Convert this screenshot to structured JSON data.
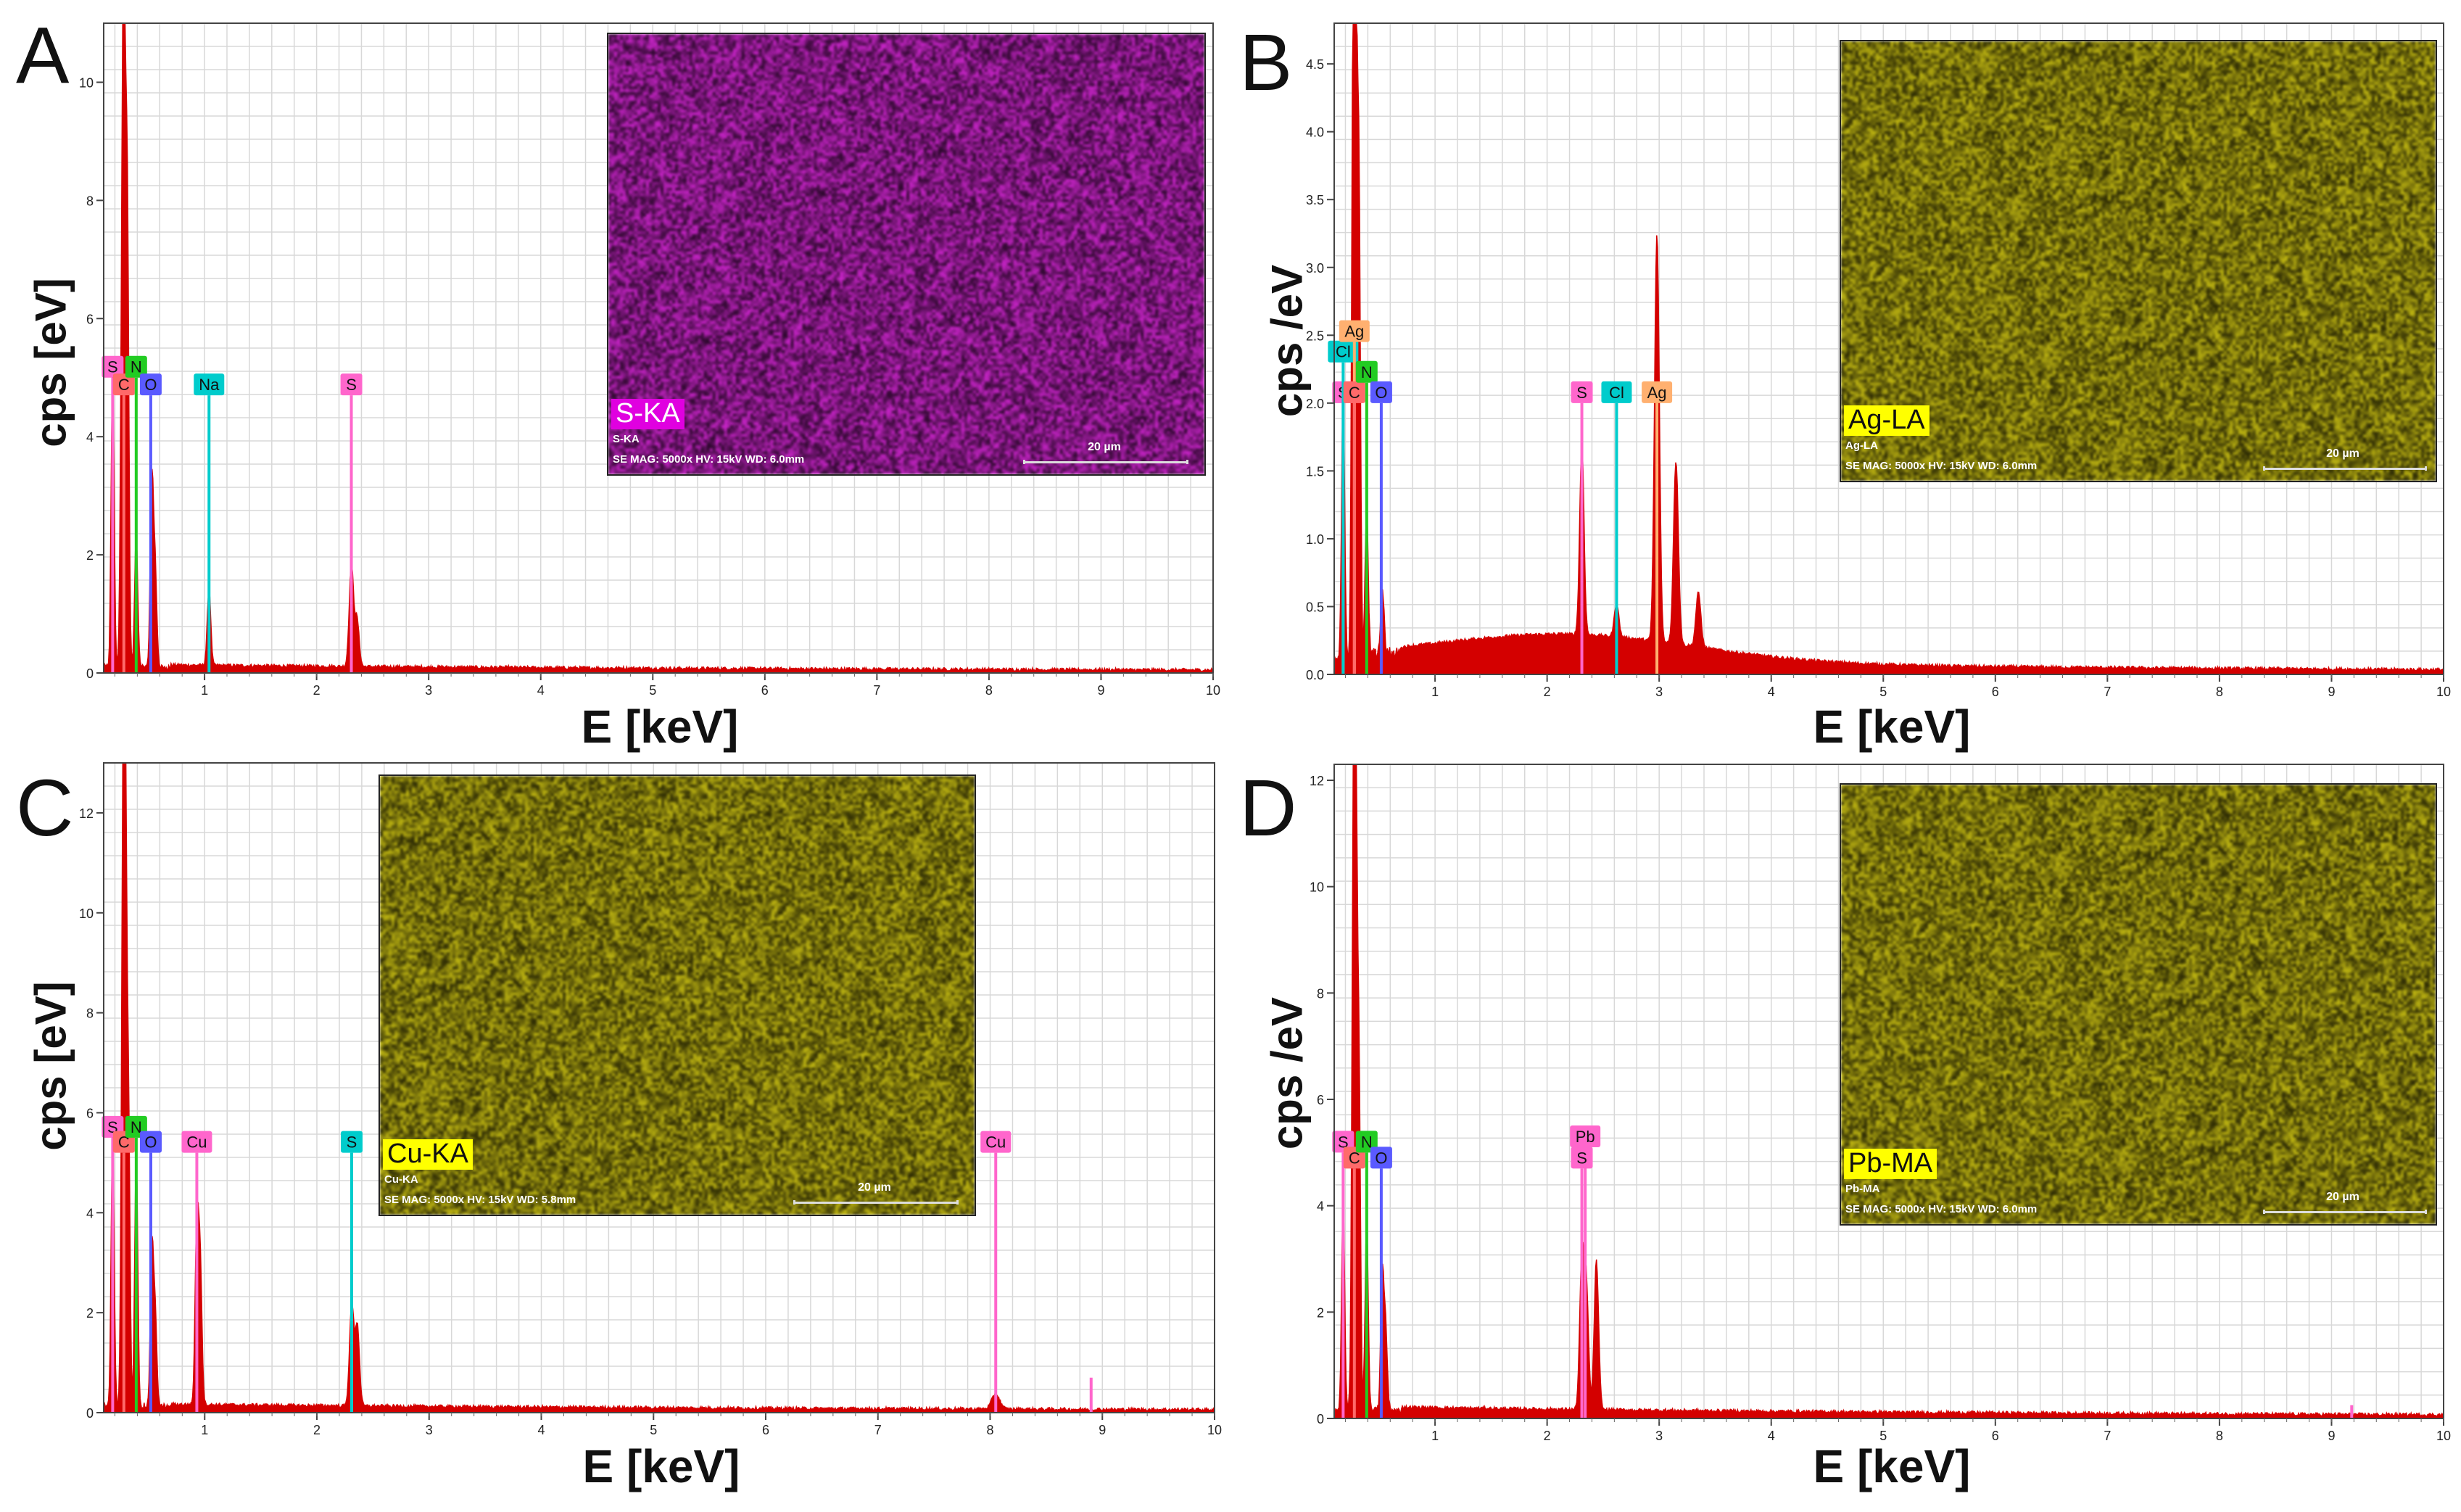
{
  "figure": {
    "background": "#ffffff",
    "spectrum_color": "#d40000",
    "grid_color": "#d8d8d8"
  },
  "chart_data": [
    {
      "type": "line",
      "panel": "A",
      "title": "",
      "xlabel": "E [keV]",
      "ylabel": "cps [eV]",
      "xlim": [
        0.1,
        10
      ],
      "ylim": [
        0,
        11
      ],
      "x_ticks": [
        1,
        2,
        3,
        4,
        5,
        6,
        7,
        8,
        9,
        10
      ],
      "y_ticks": [
        0,
        2,
        4,
        6,
        8,
        10
      ],
      "y_tick_labels": [
        "0",
        "2",
        "4",
        "6",
        "8",
        "10"
      ],
      "series": [
        {
          "name": "spectrum",
          "peaks": [
            {
              "e": 0.18,
              "h": 5.0
            },
            {
              "e": 0.26,
              "h": 3.8
            },
            {
              "e": 0.28,
              "h": 11.0
            },
            {
              "e": 0.31,
              "h": 8.0
            },
            {
              "e": 0.39,
              "h": 2.2
            },
            {
              "e": 0.53,
              "h": 3.2
            },
            {
              "e": 0.56,
              "h": 1.6
            },
            {
              "e": 1.04,
              "h": 1.3
            },
            {
              "e": 2.31,
              "h": 1.7
            },
            {
              "e": 2.36,
              "h": 0.8
            }
          ],
          "background": 0.12
        }
      ],
      "element_lines": [
        {
          "label": "S",
          "energy": 0.18,
          "height": 5.0,
          "color": "#ff66cc"
        },
        {
          "label": "C",
          "energy": 0.28,
          "height": 4.7,
          "color": "#ff6a6a"
        },
        {
          "label": "N",
          "energy": 0.39,
          "height": 5.0,
          "color": "#22cc22"
        },
        {
          "label": "O",
          "energy": 0.52,
          "height": 4.7,
          "color": "#5a5aff"
        },
        {
          "label": "Na",
          "energy": 1.04,
          "height": 4.7,
          "color": "#00cccc"
        },
        {
          "label": "S",
          "energy": 2.31,
          "height": 4.7,
          "color": "#ff66cc"
        }
      ],
      "inset": {
        "label": "S-KA",
        "sublabel": "S-KA",
        "meta": "SE  MAG: 5000x  HV: 15kV  WD: 6.0mm",
        "scale": "20 µm",
        "tone": "#b020b0",
        "label_bg": "#e000e0",
        "label_fg": "#ffffff"
      }
    },
    {
      "type": "line",
      "panel": "B",
      "title": "",
      "xlabel": "E [keV]",
      "ylabel": "cps /eV",
      "xlim": [
        0.1,
        10
      ],
      "ylim": [
        0,
        4.8
      ],
      "x_ticks": [
        1,
        2,
        3,
        4,
        5,
        6,
        7,
        8,
        9,
        10
      ],
      "y_ticks": [
        0,
        0.5,
        1.0,
        1.5,
        2.0,
        2.5,
        3.0,
        3.5,
        4.0,
        4.5
      ],
      "y_tick_labels": [
        "0.0",
        "0.5",
        "1.0",
        "1.5",
        "2.0",
        "2.5",
        "3.0",
        "3.5",
        "4.0",
        "4.5"
      ],
      "series": [
        {
          "name": "spectrum",
          "peaks": [
            {
              "e": 0.18,
              "h": 2.0
            },
            {
              "e": 0.27,
              "h": 4.3
            },
            {
              "e": 0.29,
              "h": 4.7
            },
            {
              "e": 0.32,
              "h": 3.5
            },
            {
              "e": 0.39,
              "h": 1.1
            },
            {
              "e": 0.53,
              "h": 0.5
            },
            {
              "e": 2.31,
              "h": 1.4
            },
            {
              "e": 2.62,
              "h": 0.25
            },
            {
              "e": 2.98,
              "h": 3.0
            },
            {
              "e": 3.15,
              "h": 1.35
            },
            {
              "e": 3.35,
              "h": 0.4
            }
          ],
          "background": 0.12
        },
        {
          "name": "bremsstrahlung_hump",
          "center": 2.2,
          "height": 0.2,
          "width": 1.6
        }
      ],
      "element_lines": [
        {
          "label": "S",
          "energy": 0.18,
          "height": 2.0,
          "color": "#ff66cc"
        },
        {
          "label": "Cl",
          "energy": 0.18,
          "height": 2.3,
          "color": "#00cccc"
        },
        {
          "label": "Ag",
          "energy": 0.28,
          "height": 2.45,
          "color": "#ffb070"
        },
        {
          "label": "C",
          "energy": 0.28,
          "height": 2.0,
          "color": "#ff6a6a"
        },
        {
          "label": "N",
          "energy": 0.39,
          "height": 2.15,
          "color": "#22cc22"
        },
        {
          "label": "O",
          "energy": 0.52,
          "height": 2.0,
          "color": "#5a5aff"
        },
        {
          "label": "S",
          "energy": 2.31,
          "height": 2.0,
          "color": "#ff66cc"
        },
        {
          "label": "Cl",
          "energy": 2.62,
          "height": 2.0,
          "color": "#00cccc"
        },
        {
          "label": "Ag",
          "energy": 2.98,
          "height": 2.0,
          "color": "#ffb070"
        }
      ],
      "inset": {
        "label": "Ag-LA",
        "sublabel": "Ag-LA",
        "meta": "SE  MAG: 5000x  HV: 15kV  WD: 6.0mm",
        "scale": "20 µm",
        "tone": "#a8a010",
        "label_bg": "#ffff00",
        "label_fg": "#111111"
      }
    },
    {
      "type": "line",
      "panel": "C",
      "title": "",
      "xlabel": "E [keV]",
      "ylabel": "cps [eV]",
      "xlim": [
        0.1,
        10
      ],
      "ylim": [
        0,
        13
      ],
      "x_ticks": [
        1,
        2,
        3,
        4,
        5,
        6,
        7,
        8,
        9,
        10
      ],
      "y_ticks": [
        0,
        2,
        4,
        6,
        8,
        10,
        12
      ],
      "y_tick_labels": [
        "0",
        "2",
        "4",
        "6",
        "8",
        "10",
        "12"
      ],
      "series": [
        {
          "name": "spectrum",
          "peaks": [
            {
              "e": 0.18,
              "h": 5.5
            },
            {
              "e": 0.27,
              "h": 9.0
            },
            {
              "e": 0.29,
              "h": 13.0
            },
            {
              "e": 0.32,
              "h": 6.0
            },
            {
              "e": 0.39,
              "h": 5.0
            },
            {
              "e": 0.53,
              "h": 3.2
            },
            {
              "e": 0.56,
              "h": 1.8
            },
            {
              "e": 0.93,
              "h": 3.5
            },
            {
              "e": 0.96,
              "h": 2.8
            },
            {
              "e": 2.31,
              "h": 2.0
            },
            {
              "e": 2.36,
              "h": 1.6
            },
            {
              "e": 8.05,
              "h": 0.3
            }
          ],
          "background": 0.15
        }
      ],
      "element_lines": [
        {
          "label": "S",
          "energy": 0.18,
          "height": 5.5,
          "color": "#ff66cc"
        },
        {
          "label": "C",
          "energy": 0.28,
          "height": 5.2,
          "color": "#ff6a6a"
        },
        {
          "label": "N",
          "energy": 0.39,
          "height": 5.5,
          "color": "#22cc22"
        },
        {
          "label": "O",
          "energy": 0.52,
          "height": 5.2,
          "color": "#5a5aff"
        },
        {
          "label": "Cu",
          "energy": 0.93,
          "height": 5.2,
          "color": "#ff66cc"
        },
        {
          "label": "S",
          "energy": 2.31,
          "height": 5.2,
          "color": "#00cccc"
        },
        {
          "label": "Cu",
          "energy": 8.05,
          "height": 5.2,
          "color": "#ff66cc"
        },
        {
          "label": "",
          "energy": 8.9,
          "height": 0.7,
          "color": "#ff66cc"
        }
      ],
      "inset": {
        "label": "Cu-KA",
        "sublabel": "Cu-KA",
        "meta": "SE  MAG: 5000x  HV: 15kV  WD: 5.8mm",
        "scale": "20 µm",
        "tone": "#a8a010",
        "label_bg": "#ffff00",
        "label_fg": "#111111"
      }
    },
    {
      "type": "line",
      "panel": "D",
      "title": "",
      "xlabel": "E [keV]",
      "ylabel": "cps /eV",
      "xlim": [
        0.1,
        10
      ],
      "ylim": [
        0,
        12.3
      ],
      "x_ticks": [
        1,
        2,
        3,
        4,
        5,
        6,
        7,
        8,
        9,
        10
      ],
      "y_ticks": [
        0,
        2,
        4,
        6,
        8,
        10,
        12
      ],
      "y_tick_labels": [
        "0",
        "2",
        "4",
        "6",
        "8",
        "10",
        "12"
      ],
      "series": [
        {
          "name": "spectrum",
          "peaks": [
            {
              "e": 0.18,
              "h": 4.0
            },
            {
              "e": 0.27,
              "h": 8.5
            },
            {
              "e": 0.29,
              "h": 12.1
            },
            {
              "e": 0.32,
              "h": 6.5
            },
            {
              "e": 0.39,
              "h": 3.5
            },
            {
              "e": 0.53,
              "h": 2.6
            },
            {
              "e": 0.56,
              "h": 1.5
            },
            {
              "e": 2.31,
              "h": 2.8
            },
            {
              "e": 2.35,
              "h": 2.3
            },
            {
              "e": 2.44,
              "h": 2.8
            }
          ],
          "background": 0.2
        }
      ],
      "element_lines": [
        {
          "label": "S",
          "energy": 0.18,
          "height": 5.0,
          "color": "#ff66cc"
        },
        {
          "label": "C",
          "energy": 0.28,
          "height": 4.7,
          "color": "#ff6a6a"
        },
        {
          "label": "N",
          "energy": 0.39,
          "height": 5.0,
          "color": "#22cc22"
        },
        {
          "label": "O",
          "energy": 0.52,
          "height": 4.7,
          "color": "#5a5aff"
        },
        {
          "label": "Pb",
          "energy": 2.34,
          "height": 5.1,
          "color": "#ff66cc"
        },
        {
          "label": "S",
          "energy": 2.31,
          "height": 4.7,
          "color": "#ff66cc"
        },
        {
          "label": "",
          "energy": 9.18,
          "height": 0.25,
          "color": "#ff66cc"
        }
      ],
      "inset": {
        "label": "Pb-MA",
        "sublabel": "Pb-MA",
        "meta": "SE  MAG: 5000x  HV: 15kV  WD: 6.0mm",
        "scale": "20 µm",
        "tone": "#a8a010",
        "label_bg": "#ffff00",
        "label_fg": "#111111"
      }
    }
  ]
}
